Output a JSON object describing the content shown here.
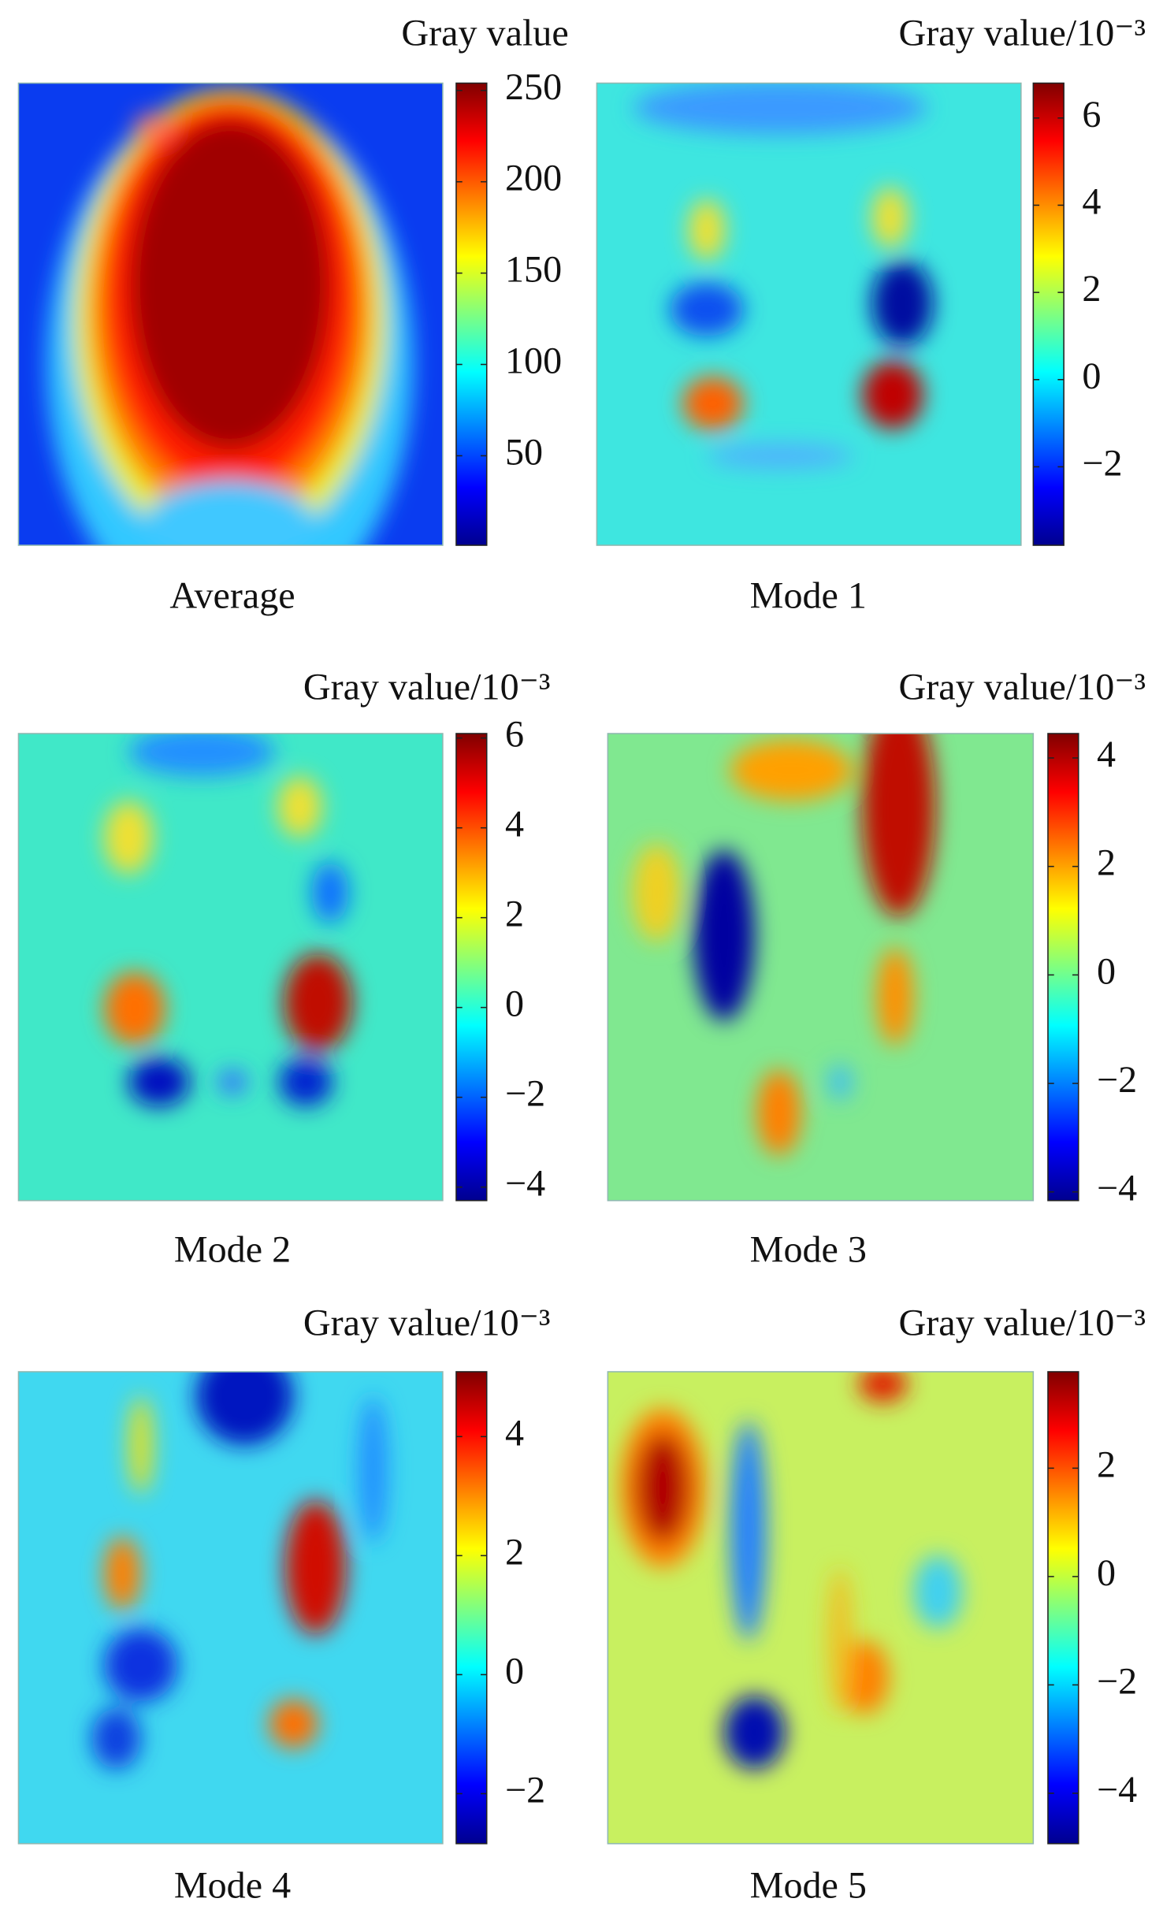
{
  "chart_data": [
    {
      "type": "heatmap",
      "title": "Average",
      "colorbar_label": "Gray value",
      "colormap": "jet",
      "colorbar_lim": [
        1,
        254
      ],
      "colorbar_ticks": [
        50,
        100,
        150,
        200,
        250
      ]
    },
    {
      "type": "heatmap",
      "title": "Mode 1",
      "colorbar_label": "Gray value/10⁻³",
      "colormap": "jet",
      "colorbar_lim": [
        -3.8,
        6.8
      ],
      "colorbar_ticks": [
        {
          "value": -2,
          "label": "−2"
        },
        0,
        2,
        4,
        6
      ]
    },
    {
      "type": "heatmap",
      "title": "Mode 2",
      "colorbar_label": "Gray value/10⁻³",
      "colormap": "jet",
      "colorbar_lim": [
        -4.3,
        6.1
      ],
      "colorbar_ticks": [
        {
          "value": -4,
          "label": "−4"
        },
        {
          "value": -2,
          "label": "−2"
        },
        0,
        2,
        4,
        6
      ]
    },
    {
      "type": "heatmap",
      "title": "Mode 3",
      "colorbar_label": "Gray value/10⁻³",
      "colormap": "jet",
      "colorbar_lim": [
        -4.16,
        4.45
      ],
      "colorbar_ticks": [
        {
          "value": -4,
          "label": "−4"
        },
        {
          "value": -2,
          "label": "−2"
        },
        0,
        2,
        4
      ]
    },
    {
      "type": "heatmap",
      "title": "Mode 4",
      "colorbar_label": "Gray value/10⁻³",
      "colormap": "jet",
      "colorbar_lim": [
        -2.84,
        5.09
      ],
      "colorbar_ticks": [
        {
          "value": -2,
          "label": "−2"
        },
        0,
        2,
        4
      ]
    },
    {
      "type": "heatmap",
      "title": "Mode 5",
      "colorbar_label": "Gray value/10⁻³",
      "colormap": "jet",
      "colorbar_lim": [
        -4.93,
        3.78
      ],
      "colorbar_ticks": [
        {
          "value": -4,
          "label": "−4"
        },
        {
          "value": -2,
          "label": "−2"
        },
        0,
        2
      ]
    }
  ]
}
